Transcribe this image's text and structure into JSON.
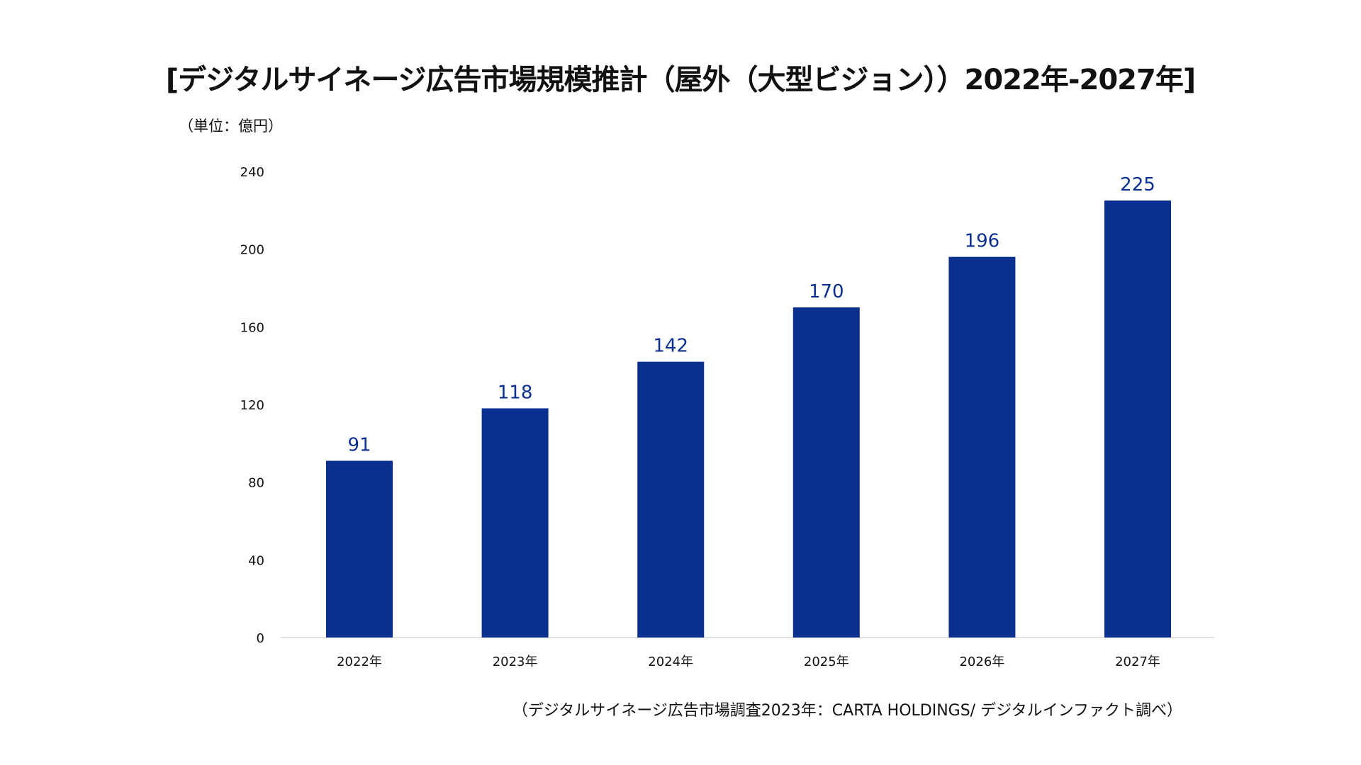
{
  "chart_data": {
    "type": "bar",
    "title": "[デジタルサイネージ広告市場規模推計（屋外（大型ビジョン））2022年-2027年]",
    "unit_label": "（単位：億円）",
    "source": "（デジタルサイネージ広告市場調査2023年：CARTA HOLDINGS/ デジタルインファクト調べ）",
    "categories": [
      "2022年",
      "2023年",
      "2024年",
      "2025年",
      "2026年",
      "2027年"
    ],
    "values": [
      91,
      118,
      142,
      170,
      196,
      225
    ],
    "ylim": [
      0,
      240
    ],
    "yticks": [
      0,
      40,
      80,
      120,
      160,
      200,
      240
    ],
    "xlabel": "",
    "ylabel": "",
    "grid": false,
    "bar_color": "#0b2f8f",
    "label_color": "#0b2f8f"
  }
}
